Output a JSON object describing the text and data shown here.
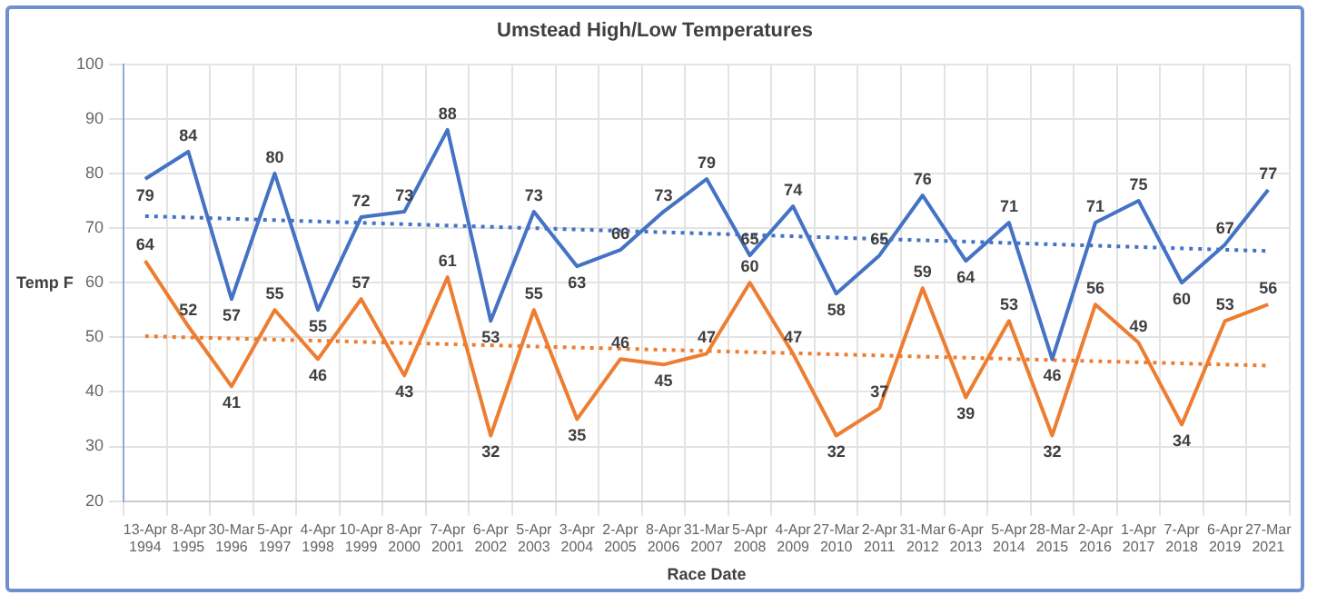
{
  "chart_data": {
    "type": "line",
    "title": "Umstead High/Low Temperatures",
    "xlabel": "Race Date",
    "ylabel": "Temp F",
    "categories": [
      "13-Apr\n1994",
      "8-Apr\n1995",
      "30-Mar\n1996",
      "5-Apr\n1997",
      "4-Apr\n1998",
      "10-Apr\n1999",
      "8-Apr\n2000",
      "7-Apr\n2001",
      "6-Apr\n2002",
      "5-Apr\n2003",
      "3-Apr\n2004",
      "2-Apr\n2005",
      "8-Apr\n2006",
      "31-Mar\n2007",
      "5-Apr\n2008",
      "4-Apr\n2009",
      "27-Mar\n2010",
      "2-Apr\n2011",
      "31-Mar\n2012",
      "6-Apr\n2013",
      "5-Apr\n2014",
      "28-Mar\n2015",
      "2-Apr\n2016",
      "1-Apr\n2017",
      "7-Apr\n2018",
      "6-Apr\n2019",
      "27-Mar\n2021"
    ],
    "series": [
      {
        "color": "#4472c4",
        "values": [
          79,
          84,
          57,
          80,
          55,
          72,
          73,
          88,
          53,
          73,
          63,
          66,
          73,
          79,
          65,
          74,
          58,
          65,
          76,
          64,
          71,
          46,
          71,
          75,
          60,
          67,
          77
        ],
        "value_labels": [
          "79",
          "84",
          "57",
          "80",
          "55",
          "72",
          "73",
          "88",
          "53",
          "73",
          "63",
          "66",
          "73",
          "79",
          "65",
          "74",
          "58",
          "65",
          "76",
          "64",
          "71",
          "46",
          "71",
          "75",
          "60",
          "67",
          "77"
        ]
      },
      {
        "color": "#ed7d31",
        "values": [
          64,
          52,
          41,
          55,
          46,
          57,
          43,
          61,
          32,
          55,
          35,
          46,
          45,
          47,
          60,
          47,
          32,
          37,
          59,
          39,
          53,
          32,
          56,
          49,
          34,
          53,
          56
        ],
        "value_labels": [
          "64",
          "52",
          "41",
          "55",
          "46",
          "57",
          "43",
          "61",
          "32",
          "55",
          "35",
          "46",
          "45",
          "47",
          "60",
          "47",
          "32",
          "37",
          "59",
          "39",
          "53",
          "32",
          "56",
          "49",
          "34",
          "53",
          "56"
        ]
      },
      {
        "type": "line",
        "line_style": "dotted",
        "color": "#4472c4",
        "values": [
          72.2,
          null,
          null,
          null,
          null,
          null,
          null,
          null,
          null,
          null,
          null,
          null,
          null,
          null,
          null,
          null,
          null,
          null,
          null,
          null,
          null,
          null,
          null,
          null,
          null,
          null,
          65.8
        ]
      },
      {
        "type": "line",
        "line_style": "dotted",
        "color": "#ed7d31",
        "values": [
          50.2,
          null,
          null,
          null,
          null,
          null,
          null,
          null,
          null,
          null,
          null,
          null,
          null,
          null,
          null,
          null,
          null,
          null,
          null,
          null,
          null,
          null,
          null,
          null,
          null,
          null,
          44.8
        ]
      }
    ],
    "ylim": [
      20,
      100
    ],
    "yticks": [
      20,
      30,
      40,
      50,
      60,
      70,
      80,
      90,
      100
    ],
    "grid": true,
    "marker": "none",
    "line_style": "solid"
  }
}
